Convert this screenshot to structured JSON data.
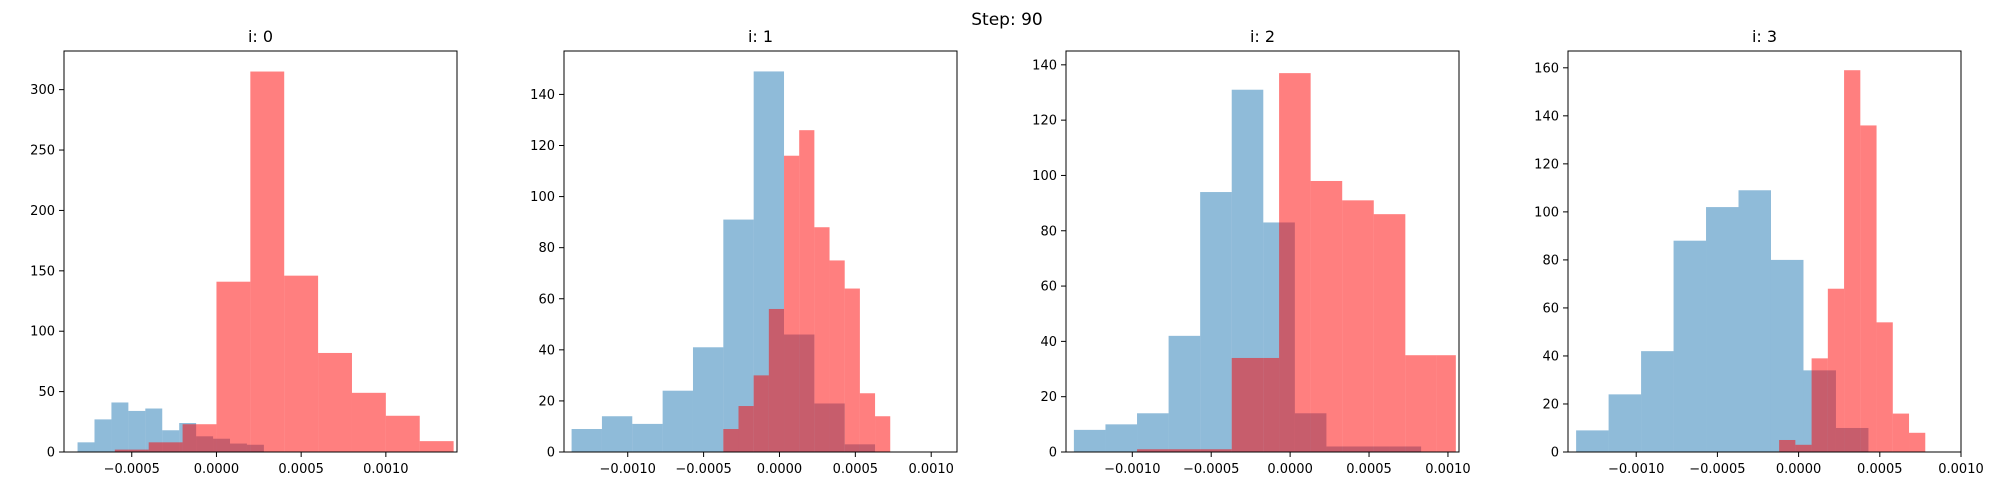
{
  "figure": {
    "suptitle": "Step: 90"
  },
  "colors": {
    "blue": "#1f77b4",
    "red": "#ff0000",
    "alpha": 0.5
  },
  "chart_data": [
    {
      "type": "histogram",
      "title": "i: 0",
      "xlim": [
        -0.0009,
        0.00142
      ],
      "ylim": [
        0,
        332
      ],
      "xticks": [
        -0.0005,
        0.0,
        0.0005,
        0.001
      ],
      "xtick_labels": [
        "−0.0005",
        "0.0000",
        "0.0005",
        "0.0010"
      ],
      "yticks": [
        0,
        50,
        100,
        150,
        200,
        250,
        300
      ],
      "ytick_labels": [
        "0",
        "50",
        "100",
        "150",
        "200",
        "250",
        "300"
      ],
      "series": [
        {
          "color": "blue",
          "edges": [
            -0.00082,
            -0.00072,
            -0.00062,
            -0.00052,
            -0.00042,
            -0.00032,
            -0.00022,
            -0.00012,
            -2e-05,
            8e-05,
            0.00018,
            0.00028
          ],
          "counts": [
            8,
            27,
            41,
            34,
            36,
            18,
            24,
            13,
            11,
            7,
            6
          ]
        },
        {
          "color": "red",
          "edges": [
            -0.0006,
            -0.0004,
            -0.0002,
            0.0,
            0.0002,
            0.0004,
            0.0006,
            0.0008,
            0.001,
            0.0012,
            0.0014
          ],
          "counts": [
            2,
            8,
            23,
            141,
            315,
            146,
            82,
            49,
            30,
            9
          ]
        }
      ]
    },
    {
      "type": "histogram",
      "title": "i: 1",
      "xlim": [
        -0.00142,
        0.00117
      ],
      "ylim": [
        0,
        157
      ],
      "xticks": [
        -0.001,
        -0.0005,
        0.0,
        0.0005,
        0.001
      ],
      "xtick_labels": [
        "−0.0010",
        "−0.0005",
        "0.0000",
        "0.0005",
        "0.0010"
      ],
      "yticks": [
        0,
        20,
        40,
        60,
        80,
        100,
        120,
        140
      ],
      "ytick_labels": [
        "0",
        "20",
        "40",
        "60",
        "80",
        "100",
        "120",
        "140"
      ],
      "series": [
        {
          "color": "blue",
          "edges": [
            -0.00137,
            -0.00117,
            -0.00097,
            -0.00077,
            -0.00057,
            -0.00037,
            -0.00017,
            3e-05,
            0.00023,
            0.00043,
            0.00063
          ],
          "counts": [
            9,
            14,
            11,
            24,
            41,
            91,
            149,
            46,
            19,
            3
          ]
        },
        {
          "color": "red",
          "edges": [
            -0.00037,
            -0.00027,
            -0.00017,
            -7e-05,
            3e-05,
            0.00013,
            0.00023,
            0.00033,
            0.00043,
            0.00053,
            0.00063,
            0.00073,
            0.00083,
            0.00093,
            0.00103,
            0.00113
          ],
          "counts": [
            9,
            18,
            30,
            56,
            116,
            126,
            88,
            75,
            64,
            23,
            14,
            0,
            0,
            0,
            0
          ]
        }
      ]
    },
    {
      "type": "histogram",
      "title": "i: 2",
      "xlim": [
        -0.00142,
        0.00107
      ],
      "ylim": [
        0,
        145
      ],
      "xticks": [
        -0.001,
        -0.0005,
        0.0,
        0.0005,
        0.001
      ],
      "xtick_labels": [
        "−0.0010",
        "−0.0005",
        "0.0000",
        "0.0005",
        "0.0010"
      ],
      "yticks": [
        0,
        20,
        40,
        60,
        80,
        100,
        120,
        140
      ],
      "ytick_labels": [
        "0",
        "20",
        "40",
        "60",
        "80",
        "100",
        "120",
        "140"
      ],
      "series": [
        {
          "color": "blue",
          "edges": [
            -0.00137,
            -0.00117,
            -0.00097,
            -0.00077,
            -0.00057,
            -0.00037,
            -0.00017,
            3e-05,
            0.00023,
            0.00043,
            0.00063,
            0.00083
          ],
          "counts": [
            8,
            10,
            14,
            42,
            94,
            131,
            83,
            14,
            2,
            2,
            2
          ]
        },
        {
          "color": "red",
          "edges": [
            -0.00097,
            -0.00037,
            -0.00017,
            -7e-05,
            0.00013,
            0.00033,
            0.00053,
            0.00073,
            0.00093,
            0.00105
          ],
          "counts": [
            1,
            34,
            34,
            137,
            98,
            91,
            86,
            35,
            35
          ]
        }
      ]
    },
    {
      "type": "histogram",
      "title": "i: 3",
      "xlim": [
        -0.00142,
        0.001
      ],
      "ylim": [
        0,
        167
      ],
      "xticks": [
        -0.001,
        -0.0005,
        0.0,
        0.0005,
        0.001
      ],
      "xtick_labels": [
        "−0.0010",
        "−0.0005",
        "0.0000",
        "0.0005",
        "0.0010"
      ],
      "yticks": [
        0,
        20,
        40,
        60,
        80,
        100,
        120,
        140,
        160
      ],
      "ytick_labels": [
        "0",
        "20",
        "40",
        "60",
        "80",
        "100",
        "120",
        "140",
        "160"
      ],
      "series": [
        {
          "color": "blue",
          "edges": [
            -0.00137,
            -0.00117,
            -0.00097,
            -0.00077,
            -0.00057,
            -0.00037,
            -0.00017,
            3e-05,
            0.00023,
            0.00043
          ],
          "counts": [
            9,
            24,
            42,
            88,
            102,
            109,
            80,
            34,
            10
          ]
        },
        {
          "color": "red",
          "edges": [
            -0.00012,
            -2e-05,
            8e-05,
            0.00018,
            0.00028,
            0.00038,
            0.00048,
            0.00058,
            0.00068,
            0.00078,
            0.00088
          ],
          "counts": [
            5,
            3,
            39,
            68,
            159,
            136,
            54,
            16,
            8,
            0
          ]
        }
      ]
    }
  ]
}
